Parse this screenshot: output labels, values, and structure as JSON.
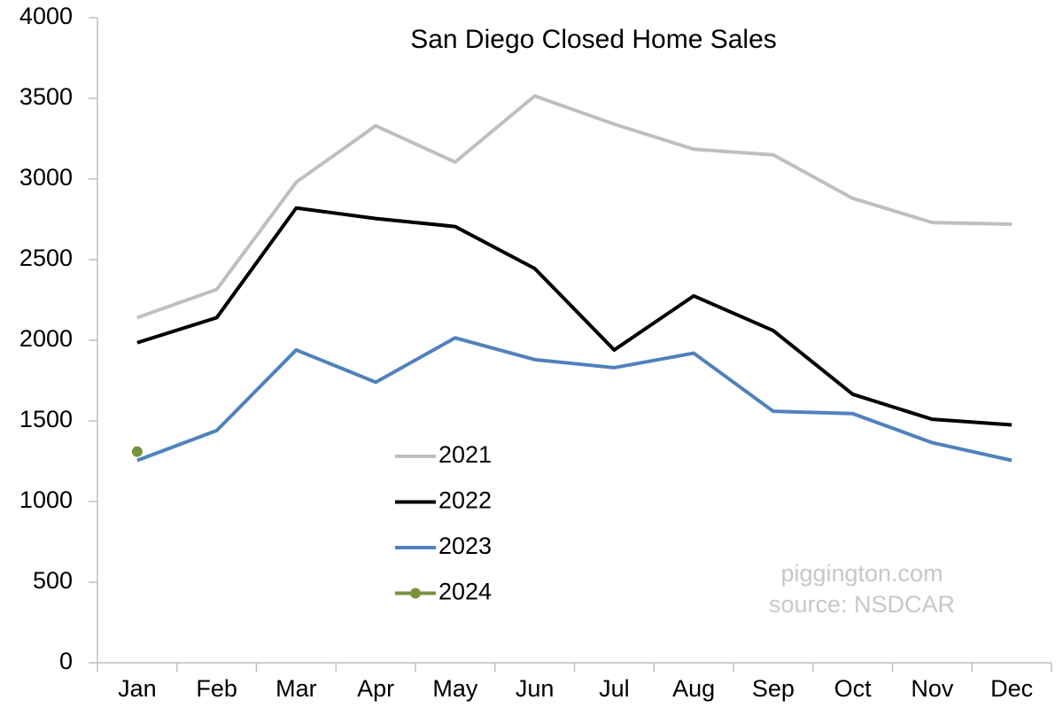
{
  "chart_data": {
    "type": "line",
    "title": "San Diego Closed Home Sales",
    "categories": [
      "Jan",
      "Feb",
      "Mar",
      "Apr",
      "May",
      "Jun",
      "Jul",
      "Aug",
      "Sep",
      "Oct",
      "Nov",
      "Dec"
    ],
    "series": [
      {
        "name": "2021",
        "color": "#bfbfbf",
        "marker": false,
        "values": [
          2140,
          2315,
          2980,
          3330,
          3105,
          3515,
          3340,
          3185,
          3150,
          2880,
          2730,
          2720
        ]
      },
      {
        "name": "2022",
        "color": "#000000",
        "marker": false,
        "values": [
          1985,
          2140,
          2820,
          2755,
          2705,
          2445,
          1940,
          2275,
          2060,
          1665,
          1510,
          1475
        ]
      },
      {
        "name": "2023",
        "color": "#4f81bd",
        "marker": false,
        "values": [
          1255,
          1440,
          1940,
          1740,
          2015,
          1880,
          1830,
          1920,
          1560,
          1545,
          1365,
          1255
        ]
      },
      {
        "name": "2024",
        "color": "#77933c",
        "marker": true,
        "values": [
          1310,
          null,
          null,
          null,
          null,
          null,
          null,
          null,
          null,
          null,
          null,
          null
        ]
      }
    ],
    "ylim": [
      0,
      4000
    ],
    "yticks": [
      0,
      500,
      1000,
      1500,
      2000,
      2500,
      3000,
      3500,
      4000
    ],
    "grid": false,
    "annotations": [
      "piggington.com",
      "source: NSDCAR"
    ]
  }
}
